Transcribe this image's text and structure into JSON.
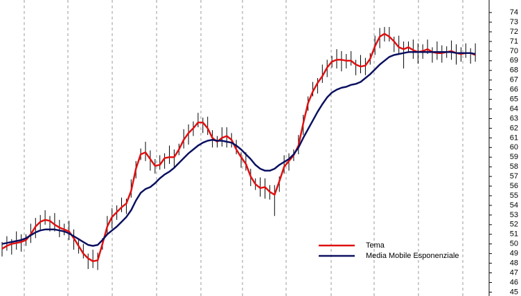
{
  "chart_data": {
    "type": "ohlc",
    "bar_color": "#000000",
    "high": [
      50.2,
      50.8,
      50.5,
      51.3,
      51.0,
      51.0,
      52.1,
      52.7,
      53.0,
      53.5,
      52.9,
      53.2,
      52.5,
      52.1,
      52.4,
      51.5,
      50.5,
      50.0,
      49.0,
      49.4,
      49.1,
      50.6,
      52.9,
      53.7,
      54.0,
      54.8,
      54.7,
      56.7,
      58.6,
      59.9,
      60.6,
      59.7,
      58.8,
      59.2,
      59.4,
      60.2,
      59.8,
      60.4,
      61.9,
      62.4,
      62.7,
      63.6,
      63.1,
      63.2,
      61.8,
      61.2,
      62.1,
      62.1,
      61.5,
      60.8,
      59.5,
      59.5,
      57.8,
      56.8,
      56.9,
      56.8,
      56.1,
      56.1,
      57.0,
      59.2,
      59.4,
      59.8,
      61.3,
      63.4,
      65.3,
      66.8,
      67.2,
      68.6,
      69.1,
      69.5,
      70.2,
      70.0,
      69.7,
      70.0,
      69.1,
      69.6,
      69.3,
      69.8,
      71.6,
      72.4,
      72.5,
      72.5,
      71.5,
      71.6,
      71.0,
      71.0,
      71.2,
      70.8,
      70.7,
      71.2,
      70.4,
      71.0,
      70.6,
      70.5,
      71.1,
      70.7,
      70.4,
      70.8,
      70.3,
      70.8
    ],
    "low": [
      48.7,
      49.3,
      48.9,
      49.4,
      49.2,
      49.8,
      50.1,
      50.6,
      51.5,
      52.0,
      51.3,
      51.3,
      50.7,
      50.9,
      50.4,
      49.4,
      49.0,
      48.5,
      47.4,
      47.5,
      47.3,
      49.4,
      50.9,
      51.6,
      52.5,
      53.3,
      53.1,
      54.8,
      56.8,
      58.7,
      58.6,
      57.6,
      57.3,
      57.7,
      57.8,
      58.3,
      58.0,
      59.2,
      59.9,
      60.3,
      61.2,
      62.1,
      61.5,
      61.3,
      60.0,
      60.0,
      60.1,
      60.0,
      60.0,
      59.3,
      57.9,
      57.6,
      56.0,
      55.6,
      54.9,
      54.7,
      54.6,
      52.9,
      55.4,
      57.3,
      57.6,
      58.6,
      59.3,
      61.3,
      63.8,
      65.3,
      65.6,
      66.7,
      67.3,
      68.3,
      68.2,
      67.9,
      68.2,
      68.5,
      67.5,
      67.7,
      67.5,
      68.6,
      69.6,
      70.3,
      71.0,
      71.0,
      69.9,
      69.7,
      68.2,
      69.8,
      69.2,
      68.7,
      69.2,
      69.7,
      68.8,
      69.1,
      68.8,
      69.3,
      69.1,
      68.6,
      68.9,
      69.3,
      68.7,
      68.9
    ],
    "series": [
      {
        "name": "Tema",
        "color": "#e01010",
        "values": [
          49.5,
          49.8,
          50.0,
          50.1,
          50.2,
          50.4,
          51.0,
          51.8,
          52.3,
          52.5,
          52.4,
          52.0,
          51.7,
          51.5,
          51.3,
          50.6,
          49.8,
          49.0,
          48.5,
          48.2,
          48.3,
          50.0,
          51.8,
          52.8,
          53.3,
          53.8,
          54.2,
          55.5,
          57.8,
          59.3,
          59.5,
          58.8,
          58.1,
          58.2,
          58.9,
          59.0,
          59.0,
          59.8,
          60.8,
          61.5,
          62.0,
          62.6,
          62.6,
          62.0,
          61.0,
          60.6,
          61.0,
          61.2,
          60.8,
          59.8,
          59.0,
          58.3,
          57.0,
          56.2,
          55.8,
          55.9,
          55.4,
          55.1,
          56.5,
          58.0,
          58.6,
          59.2,
          60.2,
          62.5,
          64.6,
          65.8,
          66.7,
          67.4,
          68.3,
          68.9,
          69.1,
          69.1,
          69.0,
          69.0,
          68.6,
          68.4,
          68.5,
          69.2,
          70.5,
          71.5,
          71.8,
          71.5,
          71.0,
          70.4,
          70.2,
          70.4,
          70.1,
          69.9,
          70.0,
          70.2,
          69.9,
          69.8,
          69.8,
          69.9,
          70.0,
          69.8,
          69.7,
          69.8,
          69.8,
          69.6
        ]
      },
      {
        "name": "Media Mobile Esponenziale",
        "color": "#0a1060",
        "values": [
          50.0,
          50.1,
          50.2,
          50.3,
          50.4,
          50.6,
          50.9,
          51.2,
          51.4,
          51.5,
          51.5,
          51.5,
          51.4,
          51.3,
          51.1,
          50.8,
          50.5,
          50.2,
          49.9,
          49.8,
          49.9,
          50.4,
          51.0,
          51.4,
          51.8,
          52.3,
          52.8,
          53.5,
          54.5,
          55.3,
          55.7,
          55.9,
          56.3,
          56.8,
          57.2,
          57.5,
          57.9,
          58.4,
          58.9,
          59.4,
          59.8,
          60.2,
          60.5,
          60.7,
          60.8,
          60.7,
          60.7,
          60.6,
          60.5,
          60.2,
          59.8,
          59.3,
          58.8,
          58.2,
          57.8,
          57.6,
          57.6,
          57.8,
          58.2,
          58.5,
          58.8,
          59.3,
          60.0,
          61.0,
          61.9,
          62.8,
          63.7,
          64.5,
          65.2,
          65.7,
          66.0,
          66.2,
          66.3,
          66.5,
          66.6,
          66.8,
          67.2,
          67.6,
          68.1,
          68.6,
          69.0,
          69.4,
          69.6,
          69.7,
          69.8,
          69.9,
          69.9,
          69.9,
          69.9,
          69.9,
          69.9,
          69.9,
          69.9,
          69.9,
          69.9,
          69.8,
          69.8,
          69.8,
          69.8,
          69.7
        ]
      }
    ],
    "ylim": [
      44.6,
      75.3
    ],
    "yticks": [
      45,
      46,
      47,
      48,
      49,
      50,
      51,
      52,
      53,
      54,
      55,
      56,
      57,
      58,
      59,
      60,
      61,
      62,
      63,
      64,
      65,
      66,
      67,
      68,
      69,
      70,
      71,
      72,
      73,
      74
    ],
    "legend": "lower right"
  }
}
